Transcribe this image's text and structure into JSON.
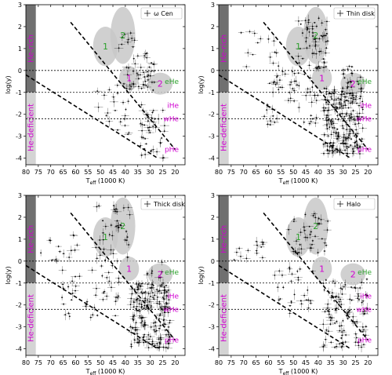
{
  "chart_data": [
    {
      "type": "scatter",
      "legend": "ω Cen",
      "seed": 11,
      "clusters": [
        {
          "n": 45,
          "x": [
            28,
            40
          ],
          "y": [
            -0.9,
            0.8
          ]
        },
        {
          "n": 40,
          "x": [
            24,
            34
          ],
          "y": [
            -4.0,
            -1.8
          ]
        },
        {
          "n": 25,
          "x": [
            33,
            52
          ],
          "y": [
            -3.0,
            -0.6
          ]
        },
        {
          "n": 10,
          "x": [
            36,
            43
          ],
          "y": [
            0.8,
            1.8
          ]
        }
      ]
    },
    {
      "type": "scatter",
      "legend": "Thin disk",
      "seed": 23,
      "clusters": [
        {
          "n": 60,
          "x": [
            36,
            48
          ],
          "y": [
            0.0,
            2.4
          ]
        },
        {
          "n": 220,
          "x": [
            22,
            38
          ],
          "y": [
            -3.8,
            -0.8
          ]
        },
        {
          "n": 60,
          "x": [
            40,
            62
          ],
          "y": [
            -2.5,
            0.0
          ]
        },
        {
          "n": 20,
          "x": [
            22,
            30
          ],
          "y": [
            -0.8,
            0.2
          ]
        },
        {
          "n": 15,
          "x": [
            55,
            72
          ],
          "y": [
            0.0,
            1.8
          ]
        }
      ]
    },
    {
      "type": "scatter",
      "legend": "Thick disk",
      "seed": 37,
      "clusters": [
        {
          "n": 40,
          "x": [
            38,
            54
          ],
          "y": [
            0.0,
            2.6
          ]
        },
        {
          "n": 200,
          "x": [
            22,
            38
          ],
          "y": [
            -4.0,
            -1.0
          ]
        },
        {
          "n": 45,
          "x": [
            42,
            66
          ],
          "y": [
            -2.6,
            -0.2
          ]
        },
        {
          "n": 15,
          "x": [
            56,
            74
          ],
          "y": [
            0.0,
            1.6
          ]
        },
        {
          "n": 8,
          "x": [
            24,
            32
          ],
          "y": [
            -0.8,
            0.0
          ]
        }
      ]
    },
    {
      "type": "scatter",
      "legend": "Halo",
      "seed": 53,
      "clusters": [
        {
          "n": 40,
          "x": [
            36,
            52
          ],
          "y": [
            0.2,
            2.4
          ]
        },
        {
          "n": 110,
          "x": [
            20,
            38
          ],
          "y": [
            -4.0,
            -0.8
          ]
        },
        {
          "n": 30,
          "x": [
            40,
            58
          ],
          "y": [
            -2.4,
            -0.2
          ]
        },
        {
          "n": 15,
          "x": [
            60,
            74
          ],
          "y": [
            0.0,
            1.0
          ]
        }
      ]
    }
  ],
  "axes": {
    "xlabel_main": "T",
    "xlabel_sub": "eff",
    "xlabel_unit": " (1000 K)",
    "ylabel": "log(y)",
    "xlim": [
      80,
      16
    ],
    "ylim": [
      -4.3,
      3.0
    ],
    "xticks": [
      80,
      75,
      70,
      65,
      60,
      55,
      50,
      45,
      40,
      35,
      30,
      25,
      20
    ],
    "yticks": [
      3,
      2,
      1,
      0,
      -1,
      -2,
      -3,
      -4
    ],
    "hlines": [
      0.0,
      -1.0,
      -2.2
    ],
    "strip_dark_color": "#707070",
    "strip_light_color": "#d4d4d4"
  },
  "zones": {
    "labels": [
      "eHe",
      "iHe",
      "wHe",
      "pHe"
    ],
    "label_y": [
      -0.5,
      -1.6,
      -2.2,
      -3.6
    ],
    "colors": [
      "#2ca02c",
      "#d000d0",
      "#d000d0",
      "#d000d0"
    ],
    "side_top": "He-rich",
    "side_bottom": "He-deficient"
  },
  "ellipses": {
    "labels": [
      "1",
      "2",
      "1",
      "2"
    ],
    "colors": [
      "#2ca02c",
      "#2ca02c",
      "#d000d0",
      "#d000d0"
    ],
    "centers": [
      [
        48,
        1.1
      ],
      [
        41,
        1.6
      ],
      [
        38.5,
        -0.35
      ],
      [
        26,
        -0.6
      ]
    ],
    "rx": [
      5,
      5,
      4,
      5
    ],
    "ry": [
      0.9,
      1.3,
      0.55,
      0.5
    ],
    "fill": "#c8c8c8"
  },
  "lines": {
    "upper": [
      [
        62,
        2.2
      ],
      [
        20,
        -3.6
      ]
    ],
    "lower": [
      [
        80,
        -0.2
      ],
      [
        27,
        -4.0
      ]
    ]
  }
}
